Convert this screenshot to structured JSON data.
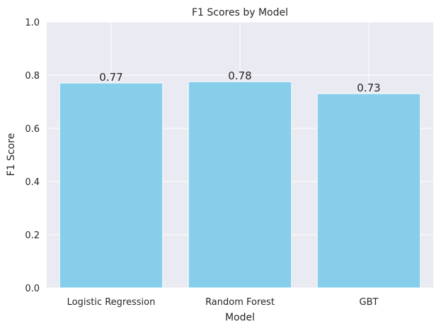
{
  "chart_data": {
    "type": "bar",
    "title": "F1 Scores by Model",
    "xlabel": "Model",
    "ylabel": "F1 Score",
    "categories": [
      "Logistic Regression",
      "Random Forest",
      "GBT"
    ],
    "values": [
      0.7705,
      0.7755,
      0.7305
    ],
    "data_labels": [
      "0.77",
      "0.78",
      "0.73"
    ],
    "ylim": [
      0,
      1
    ],
    "yticks": [
      0.0,
      0.2,
      0.4,
      0.6,
      0.8,
      1.0
    ],
    "ytick_labels": [
      "0.0",
      "0.2",
      "0.4",
      "0.6",
      "0.8",
      "1.0"
    ],
    "grid": true,
    "legend": "none",
    "colors": {
      "bar": "#87CEEB",
      "plot_background": "#EAEAF2",
      "grid": "#FFFFFF",
      "text": "#262626"
    }
  }
}
